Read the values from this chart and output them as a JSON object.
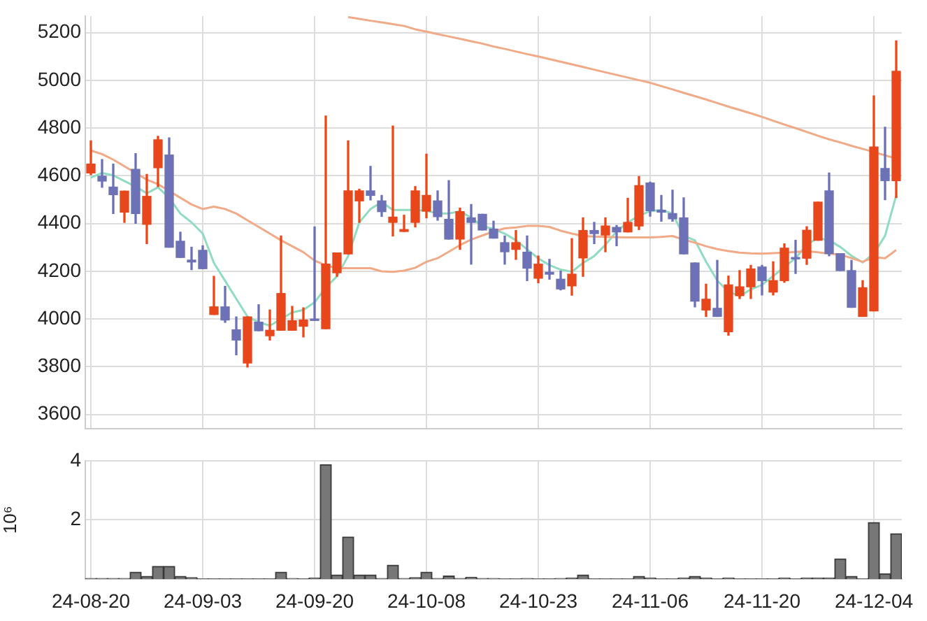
{
  "chart_data": [
    {
      "type": "candlestick",
      "categories": [
        null,
        null,
        null,
        null,
        null,
        null,
        null,
        null,
        null,
        null,
        null,
        null,
        null,
        null,
        null,
        null,
        null,
        null,
        null,
        null,
        null,
        null,
        null,
        null,
        null,
        null,
        null,
        null,
        null,
        null,
        null,
        null,
        null,
        null,
        null,
        null,
        null,
        null,
        null,
        null,
        null,
        null,
        null,
        null,
        null,
        null,
        null,
        null,
        null,
        null,
        null,
        null,
        null,
        null,
        null,
        null,
        null,
        null,
        null,
        null,
        null,
        null,
        null,
        null,
        null,
        null,
        null,
        null,
        null,
        null,
        null,
        null,
        null
      ],
      "ohlc": [
        [
          4612,
          4747,
          4605,
          4649
        ],
        [
          4599,
          4668,
          4552,
          4578
        ],
        [
          4553,
          4649,
          4442,
          4521
        ],
        [
          4448,
          4536,
          4405,
          4536
        ],
        [
          4627,
          4693,
          4401,
          4442
        ],
        [
          4397,
          4606,
          4316,
          4514
        ],
        [
          4634,
          4766,
          4555,
          4751
        ],
        [
          4687,
          4759,
          4301,
          4301
        ],
        [
          4326,
          4364,
          4258,
          4258
        ],
        [
          4247,
          4301,
          4207,
          4239
        ],
        [
          4288,
          4307,
          4211,
          4211
        ],
        [
          4019,
          4179,
          4019,
          4051
        ],
        [
          4051,
          4137,
          3986,
          3996
        ],
        [
          3955,
          4009,
          3850,
          3912
        ],
        [
          3816,
          4009,
          3799,
          4009
        ],
        [
          3987,
          4060,
          3951,
          3951
        ],
        [
          3930,
          4038,
          3912,
          3953
        ],
        [
          3953,
          4348,
          3953,
          4107
        ],
        [
          3953,
          4053,
          3953,
          3993
        ],
        [
          3970,
          4047,
          3925,
          3996
        ],
        [
          4000,
          4386,
          3994,
          3994
        ],
        [
          3959,
          4851,
          3959,
          4230
        ],
        [
          4194,
          4277,
          4179,
          4277
        ],
        [
          4273,
          4747,
          4273,
          4537
        ],
        [
          4495,
          4544,
          4405,
          4537
        ],
        [
          4537,
          4640,
          4499,
          4518
        ],
        [
          4495,
          4518,
          4430,
          4450
        ],
        [
          4405,
          4809,
          4348,
          4427
        ],
        [
          4367,
          4435,
          4367,
          4375
        ],
        [
          4405,
          4555,
          4386,
          4537
        ],
        [
          4452,
          4691,
          4424,
          4518
        ],
        [
          4495,
          4537,
          4414,
          4429
        ],
        [
          4418,
          4580,
          4335,
          4335
        ],
        [
          4335,
          4465,
          4292,
          4450
        ],
        [
          4424,
          4480,
          4230,
          4405
        ],
        [
          4439,
          4439,
          4373,
          4373
        ],
        [
          4377,
          4410,
          4339,
          4339
        ],
        [
          4320,
          4348,
          4230,
          4282
        ],
        [
          4292,
          4371,
          4250,
          4320
        ],
        [
          4280,
          4348,
          4161,
          4213
        ],
        [
          4171,
          4264,
          4152,
          4230
        ],
        [
          4196,
          4250,
          4167,
          4188
        ],
        [
          4167,
          4201,
          4122,
          4126
        ],
        [
          4139,
          4337,
          4100,
          4188
        ],
        [
          4256,
          4424,
          4179,
          4371
        ],
        [
          4371,
          4405,
          4316,
          4358
        ],
        [
          4352,
          4424,
          4282,
          4390
        ],
        [
          4384,
          4392,
          4307,
          4365
        ],
        [
          4365,
          4506,
          4365,
          4405
        ],
        [
          4390,
          4597,
          4375,
          4559
        ],
        [
          4570,
          4574,
          4431,
          4454
        ],
        [
          4456,
          4518,
          4410,
          4448
        ],
        [
          4442,
          4540,
          4410,
          4420
        ],
        [
          4424,
          4508,
          4273,
          4273
        ],
        [
          4235,
          4235,
          4051,
          4075
        ],
        [
          4038,
          4146,
          4011,
          4083
        ],
        [
          4045,
          4246,
          4011,
          4011
        ],
        [
          3947,
          4180,
          3932,
          4143
        ],
        [
          4098,
          4203,
          4086,
          4135
        ],
        [
          4135,
          4225,
          4086,
          4210
        ],
        [
          4218,
          4225,
          4101,
          4161
        ],
        [
          4113,
          4240,
          4101,
          4161
        ],
        [
          4161,
          4315,
          4154,
          4297
        ],
        [
          4256,
          4330,
          4191,
          4252
        ],
        [
          4255,
          4387,
          4229,
          4372
        ],
        [
          4330,
          4490,
          4330,
          4490
        ],
        [
          4537,
          4612,
          4265,
          4274
        ],
        [
          4274,
          4274,
          4203,
          4203
        ],
        [
          4203,
          4246,
          4049,
          4049
        ],
        [
          4011,
          4161,
          4011,
          4131
        ],
        [
          4034,
          4935,
          4034,
          4721
        ],
        [
          4631,
          4804,
          4500,
          4580
        ],
        [
          4580,
          5166,
          4509,
          5038
        ]
      ],
      "colors": [
        "#e8461b",
        "#6d71b5",
        "#6d71b5",
        "#e8461b",
        "#6d71b5",
        "#e8461b",
        "#e8461b",
        "#6d71b5",
        "#6d71b5",
        "#6d71b5",
        "#6d71b5",
        "#e8461b",
        "#6d71b5",
        "#6d71b5",
        "#e8461b",
        "#6d71b5",
        "#e8461b",
        "#e8461b",
        "#e8461b",
        "#e8461b",
        "#6d71b5",
        "#e8461b",
        "#e8461b",
        "#e8461b",
        "#e8461b",
        "#6d71b5",
        "#6d71b5",
        "#e8461b",
        "#e8461b",
        "#e8461b",
        "#e8461b",
        "#6d71b5",
        "#6d71b5",
        "#e8461b",
        "#6d71b5",
        "#6d71b5",
        "#6d71b5",
        "#6d71b5",
        "#e8461b",
        "#6d71b5",
        "#e8461b",
        "#6d71b5",
        "#6d71b5",
        "#e8461b",
        "#e8461b",
        "#6d71b5",
        "#e8461b",
        "#6d71b5",
        "#e8461b",
        "#e8461b",
        "#6d71b5",
        "#6d71b5",
        "#6d71b5",
        "#6d71b5",
        "#6d71b5",
        "#e8461b",
        "#6d71b5",
        "#e8461b",
        "#e8461b",
        "#e8461b",
        "#6d71b5",
        "#e8461b",
        "#e8461b",
        "#6d71b5",
        "#e8461b",
        "#e8461b",
        "#6d71b5",
        "#6d71b5",
        "#6d71b5",
        "#e8461b",
        "#e8461b",
        "#6d71b5",
        "#e8461b"
      ],
      "series": [
        {
          "type": "line",
          "color": "#f0aa88",
          "values": [
            null,
            null,
            null,
            null,
            null,
            null,
            null,
            null,
            null,
            null,
            null,
            null,
            null,
            null,
            null,
            null,
            null,
            null,
            null,
            null,
            null,
            null,
            null,
            5265,
            5258,
            5250,
            5243,
            5236,
            5228,
            5214,
            5204,
            5194,
            5184,
            5174,
            5164,
            5154,
            5142,
            5132,
            5121,
            5110,
            5100,
            5089,
            5078,
            5067,
            5056,
            5045,
            5034,
            5023,
            5012,
            5001,
            4990,
            4976,
            4962,
            4948,
            4934,
            4920,
            4905,
            4890,
            4876,
            4862,
            4847,
            4831,
            4815,
            4800,
            4784,
            4768,
            4753,
            4740,
            4726,
            4713,
            4700,
            4686,
            4672
          ]
        },
        {
          "type": "line",
          "color": "#f0aa88",
          "values": [
            4706,
            4691,
            4668,
            4640,
            4612,
            4584,
            4565,
            4537,
            4508,
            4480,
            4461,
            4471,
            4461,
            4442,
            4414,
            4386,
            4358,
            4330,
            4305,
            4280,
            4245,
            4225,
            4213,
            4213,
            4213,
            4213,
            4200,
            4198,
            4203,
            4215,
            4240,
            4255,
            4282,
            4310,
            4333,
            4350,
            4367,
            4380,
            4384,
            4390,
            4390,
            4386,
            4370,
            4358,
            4348,
            4346,
            4344,
            4343,
            4342,
            4342,
            4342,
            4344,
            4348,
            4333,
            4320,
            4305,
            4293,
            4285,
            4278,
            4275,
            4274,
            4276,
            4278,
            4281,
            4284,
            4280,
            4274,
            4270,
            4255,
            4240,
            4259,
            4255,
            4289
          ]
        },
        {
          "type": "line",
          "color": "#8fdcc0",
          "values": [
            4593,
            4612,
            4602,
            4578,
            4555,
            4527,
            4552,
            4508,
            4442,
            4405,
            4358,
            4235,
            4160,
            4085,
            4010,
            3987,
            3972,
            4000,
            4028,
            4038,
            4070,
            4132,
            4179,
            4264,
            4405,
            4461,
            4490,
            4457,
            4457,
            4457,
            4454,
            4442,
            4442,
            4452,
            4424,
            4390,
            4377,
            4358,
            4330,
            4292,
            4254,
            4226,
            4207,
            4198,
            4235,
            4264,
            4311,
            4367,
            4405,
            4433,
            4452,
            4457,
            4442,
            4348,
            4330,
            4240,
            4161,
            4115,
            4096,
            4124,
            4143,
            4180,
            4218,
            4255,
            4312,
            4340,
            4330,
            4302,
            4265,
            4237,
            4274,
            4349,
            4518
          ]
        }
      ],
      "ylim": [
        3540,
        5270
      ],
      "yticks": [
        3600,
        3800,
        4000,
        4200,
        4400,
        4600,
        4800,
        5000,
        5200
      ],
      "grid": true,
      "tick_labels": "y"
    },
    {
      "type": "bar",
      "ylabel": "10⁶",
      "categories": [
        "24-08-20",
        null,
        null,
        null,
        null,
        null,
        null,
        null,
        null,
        null,
        "24-09-03",
        null,
        null,
        null,
        null,
        null,
        null,
        null,
        null,
        null,
        "24-09-20",
        null,
        null,
        null,
        null,
        null,
        null,
        null,
        null,
        null,
        "24-10-08",
        null,
        null,
        null,
        null,
        null,
        null,
        null,
        null,
        null,
        "24-10-23",
        null,
        null,
        null,
        null,
        null,
        null,
        null,
        null,
        null,
        "24-11-06",
        null,
        null,
        null,
        null,
        null,
        null,
        null,
        null,
        null,
        "24-11-20",
        null,
        null,
        null,
        null,
        null,
        null,
        null,
        null,
        null,
        "24-12-04",
        null,
        null
      ],
      "values": [
        0.02,
        0.02,
        0.02,
        0.02,
        0.23,
        0.09,
        0.43,
        0.43,
        0.09,
        0.05,
        0.01,
        0.01,
        0.01,
        0.01,
        0.01,
        0.01,
        0.01,
        0.23,
        0.02,
        0.01,
        0.04,
        3.87,
        0.14,
        1.42,
        0.14,
        0.14,
        0.02,
        0.47,
        0.02,
        0.05,
        0.23,
        0.02,
        0.1,
        0.02,
        0.06,
        0.02,
        0.02,
        0.01,
        0.01,
        0.02,
        0.01,
        0.01,
        0.02,
        0.04,
        0.14,
        0.01,
        0.01,
        0.01,
        0.01,
        0.09,
        0.04,
        0.01,
        0.01,
        0.04,
        0.09,
        0.04,
        0.01,
        0.04,
        0.01,
        0.01,
        0.01,
        0.01,
        0.04,
        0.01,
        0.04,
        0.04,
        0.04,
        0.68,
        0.09,
        0.01,
        1.91,
        0.18,
        1.53
      ],
      "color": "#777777",
      "ylim": [
        0,
        4
      ],
      "yticks": [
        2,
        4
      ],
      "grid": true
    }
  ]
}
